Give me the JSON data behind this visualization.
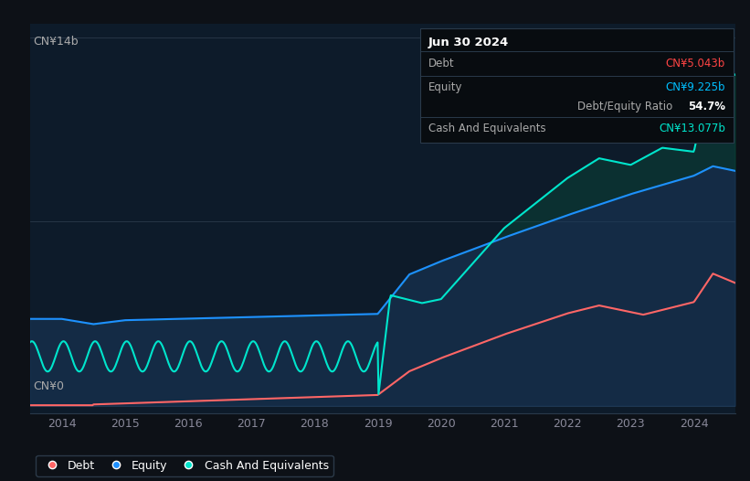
{
  "bg_color": "#0d1117",
  "plot_bg_color": "#0d1b2a",
  "title_box_date": "Jun 30 2024",
  "ylabel_top": "CN¥14b",
  "ylabel_bottom": "CN¥0",
  "x_ticks": [
    "2014",
    "2015",
    "2016",
    "2017",
    "2018",
    "2019",
    "2020",
    "2021",
    "2022",
    "2023",
    "2024"
  ],
  "debt_color": "#ff6666",
  "equity_color": "#1e90ff",
  "cash_color": "#00e5cc",
  "tooltip_date": "Jun 30 2024",
  "tooltip_debt_label": "Debt",
  "tooltip_debt_value": "CN¥5.043b",
  "tooltip_debt_color": "#ff4444",
  "tooltip_equity_label": "Equity",
  "tooltip_equity_value": "CN¥9.225b",
  "tooltip_equity_color": "#00bfff",
  "tooltip_ratio": "54.7%",
  "tooltip_ratio_suffix": " Debt/Equity Ratio",
  "tooltip_cash_label": "Cash And Equivalents",
  "tooltip_cash_value": "CN¥13.077b",
  "tooltip_cash_color": "#00e5cc",
  "legend_items": [
    {
      "label": "Debt",
      "color": "#ff6666"
    },
    {
      "label": "Equity",
      "color": "#1e90ff"
    },
    {
      "label": "Cash And Equivalents",
      "color": "#00e5cc"
    }
  ]
}
